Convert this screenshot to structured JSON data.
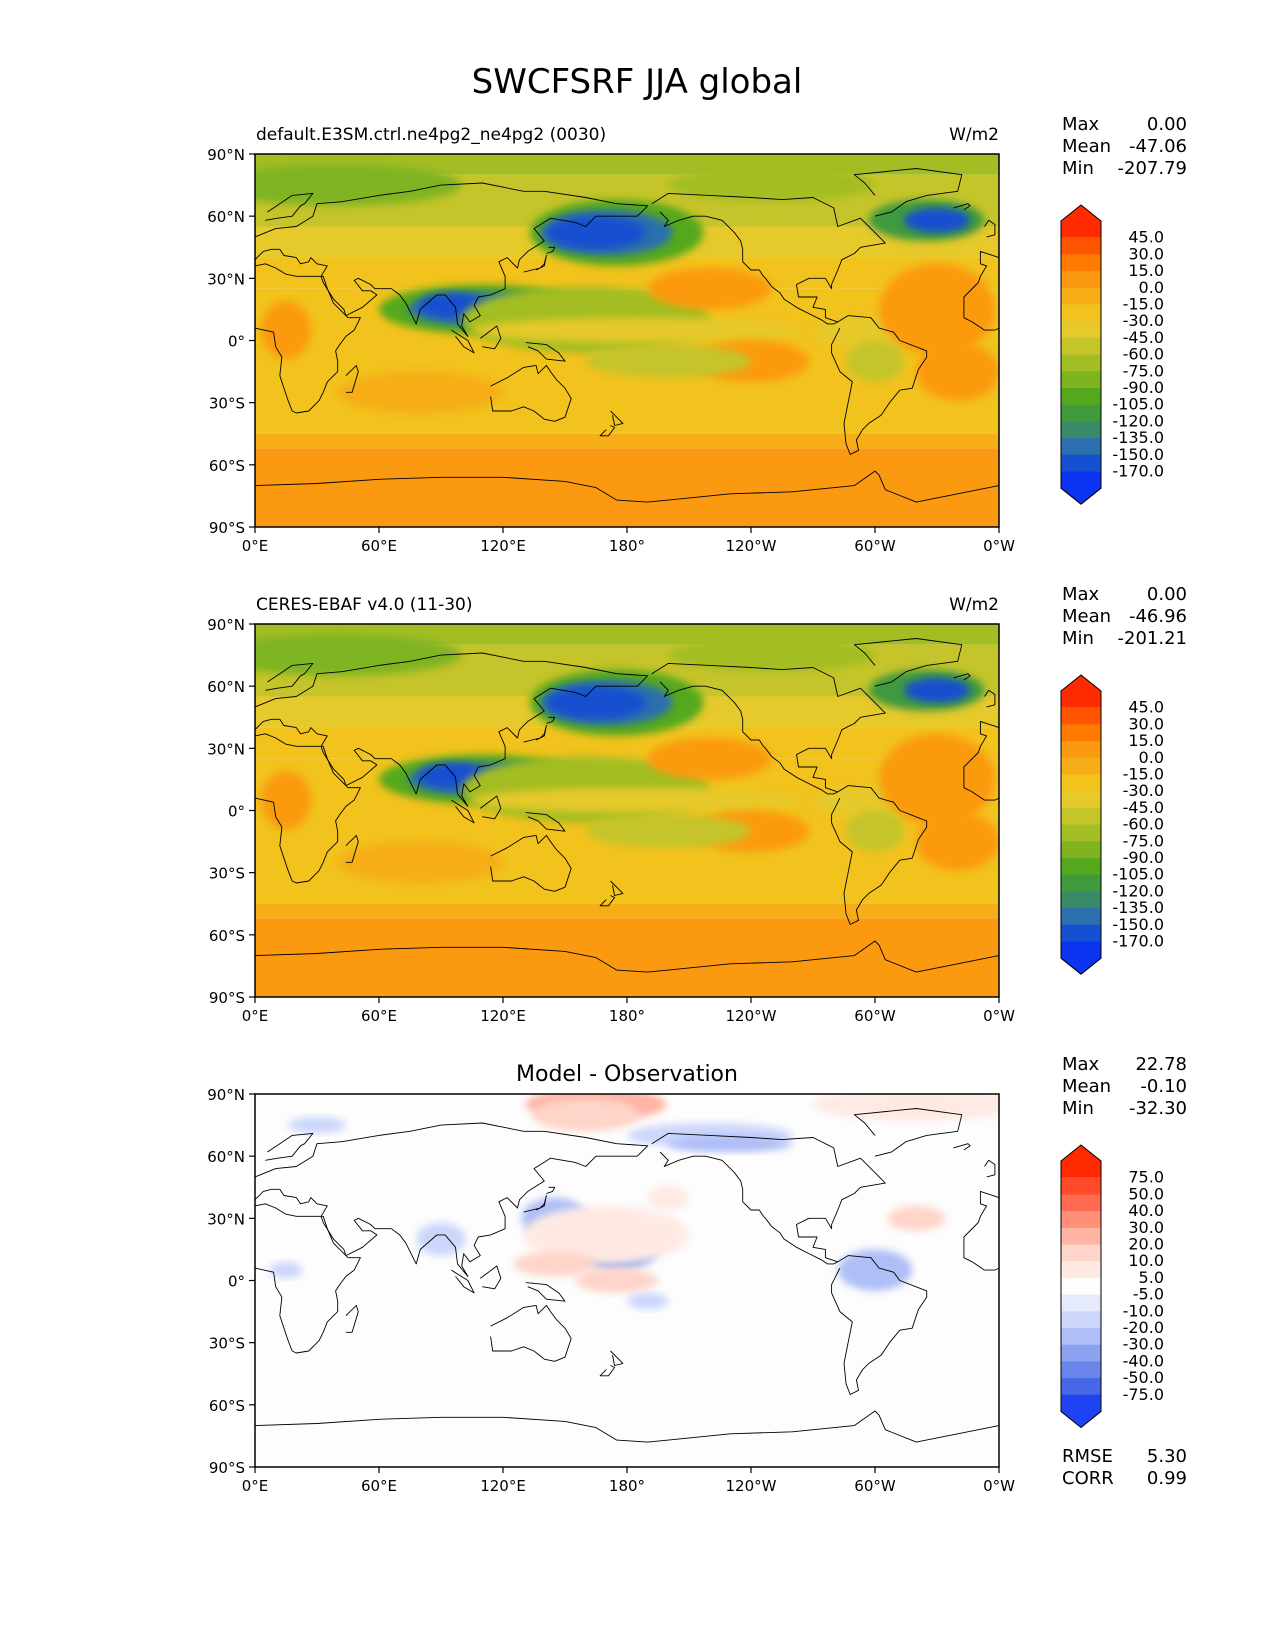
{
  "title": "SWCFSRF JJA global",
  "lat_ticks": [
    "90°N",
    "60°N",
    "30°N",
    "0°",
    "30°S",
    "60°S",
    "90°S"
  ],
  "lon_ticks": [
    "0°E",
    "60°E",
    "120°E",
    "180°",
    "120°W",
    "60°W",
    "0°W"
  ],
  "panels": [
    {
      "id": "test",
      "left_title": "default.E3SM.ctrl.ne4pg2_ne4pg2 (0030)",
      "center_title": "",
      "right_title": "W/m2",
      "stats_labels": [
        "Max",
        "Mean",
        "Min"
      ],
      "stats_values": [
        "0.00",
        "-47.06",
        "-207.79"
      ],
      "colorbar_levels": [
        "45.0",
        "30.0",
        "15.0",
        "0.0",
        "-15.0",
        "-30.0",
        "-45.0",
        "-60.0",
        "-75.0",
        "-90.0",
        "-105.0",
        "-120.0",
        "-135.0",
        "-150.0",
        "-170.0"
      ]
    },
    {
      "id": "reference",
      "left_title": "CERES-EBAF v4.0 (11-30)",
      "center_title": "",
      "right_title": "W/m2",
      "stats_labels": [
        "Max",
        "Mean",
        "Min"
      ],
      "stats_values": [
        "0.00",
        "-46.96",
        "-201.21"
      ],
      "colorbar_levels": [
        "45.0",
        "30.0",
        "15.0",
        "0.0",
        "-15.0",
        "-30.0",
        "-45.0",
        "-60.0",
        "-75.0",
        "-90.0",
        "-105.0",
        "-120.0",
        "-135.0",
        "-150.0",
        "-170.0"
      ]
    },
    {
      "id": "difference",
      "left_title": "",
      "center_title": "Model - Observation",
      "right_title": "",
      "stats_labels": [
        "Max",
        "Mean",
        "Min"
      ],
      "stats_values": [
        "22.78",
        "-0.10",
        "-32.30"
      ],
      "colorbar_levels": [
        "75.0",
        "50.0",
        "40.0",
        "30.0",
        "20.0",
        "10.0",
        "5.0",
        "-5.0",
        "-10.0",
        "-20.0",
        "-30.0",
        "-40.0",
        "-50.0",
        "-75.0"
      ],
      "metrics_labels": [
        "RMSE",
        "CORR"
      ],
      "metrics_values": [
        "5.30",
        "0.99"
      ]
    }
  ],
  "colors": {
    "field_scale": [
      "#ff2a00",
      "#ff5500",
      "#ff7b00",
      "#fb9a10",
      "#f6ad18",
      "#f2c21d",
      "#e6c92a",
      "#c5c42a",
      "#a3bd24",
      "#7fb420",
      "#55a81e",
      "#3f9a3c",
      "#3a8a6a",
      "#2c6fae",
      "#1450d0",
      "#0a34f0"
    ],
    "diff_scale": [
      "#ff2a00",
      "#ff4a2a",
      "#ff6a50",
      "#ff8f78",
      "#ffb3a3",
      "#ffd4c9",
      "#ffe9e3",
      "#fdfdfd",
      "#e6eafd",
      "#ccd6fb",
      "#aebef7",
      "#8ca2f1",
      "#6a85ea",
      "#4767e6",
      "#1f43f2"
    ]
  }
}
